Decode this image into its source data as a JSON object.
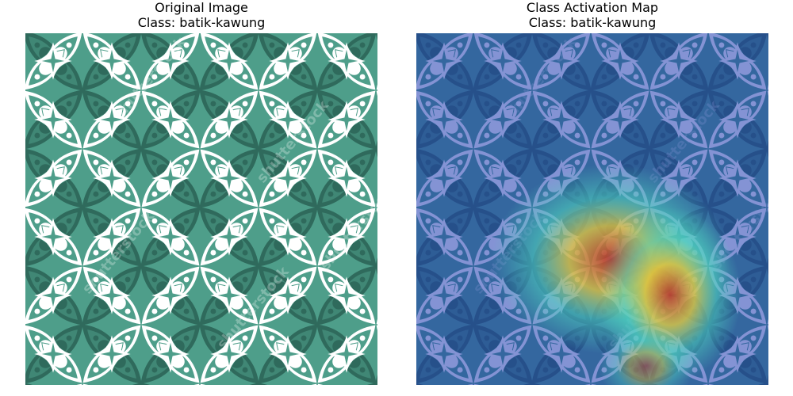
{
  "panels": [
    {
      "title_line1": "Original Image",
      "title_line2": "Class: batik-kawung",
      "image_description": "green batik kawung pattern",
      "watermark": "shutterstock"
    },
    {
      "title_line1": "Class Activation Map",
      "title_line2": "Class: batik-kawung",
      "image_description": "batik kawung pattern with heatmap overlay",
      "watermark": "shutterstock"
    }
  ],
  "colors": {
    "batik_base": "#4e9e8a",
    "batik_dark": "#2f6a5c",
    "batik_light": "#ffffff",
    "cam_low": "#1f3bb0",
    "cam_high": "#c2301e"
  }
}
